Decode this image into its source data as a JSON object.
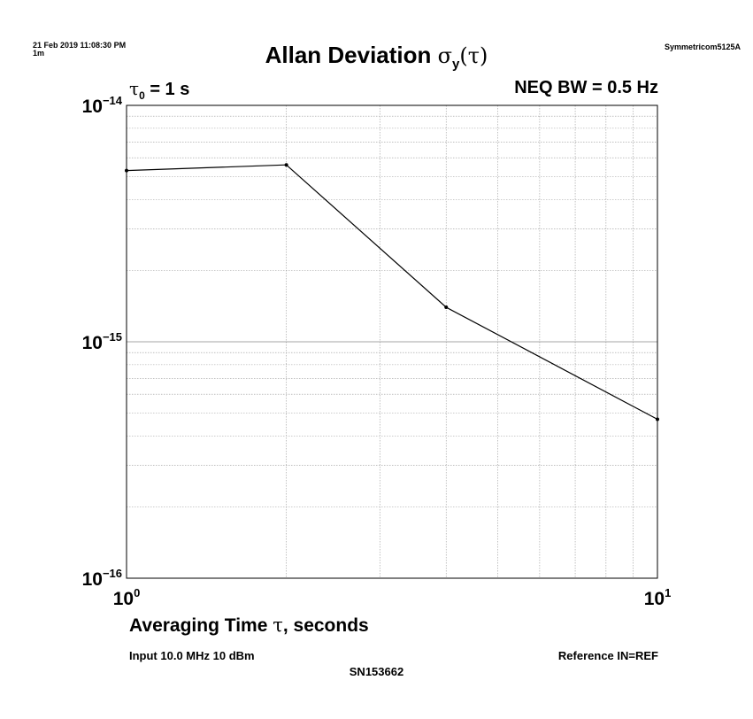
{
  "header": {
    "timestamp": "21 Feb 2019 11:08:30 PM",
    "run_label": "1m",
    "instrument": "Symmetricom5125A",
    "title_text": "Allan Deviation ",
    "title_sigma": "σ",
    "title_sub": "y",
    "title_open": "(",
    "title_tau": "τ",
    "title_close": ")"
  },
  "annotations": {
    "tau0_symbol": "τ",
    "tau0_sub": "0",
    "tau0_value": " = 1 s",
    "neq_bw": "NEQ BW = 0.5 Hz"
  },
  "footer": {
    "xlabel_pre": "Averaging Time ",
    "xlabel_tau": "τ",
    "xlabel_post": ", seconds",
    "input": "Input 10.0 MHz 10 dBm",
    "reference": "Reference IN=REF",
    "serial": "SN153662"
  },
  "chart_data": {
    "type": "line",
    "title": "Allan Deviation σy(τ)",
    "xlabel": "Averaging Time τ, seconds",
    "ylabel": "",
    "x_scale": "log",
    "y_scale": "log",
    "xlim": [
      1,
      10
    ],
    "ylim": [
      1e-16,
      1e-14
    ],
    "grid": true,
    "x_ticks": [
      {
        "value": 1,
        "base": "10",
        "exp": "0"
      },
      {
        "value": 10,
        "base": "10",
        "exp": "1"
      }
    ],
    "y_ticks": [
      {
        "value": 1e-14,
        "base": "10",
        "exp": "−14"
      },
      {
        "value": 1e-15,
        "base": "10",
        "exp": "−15"
      },
      {
        "value": 1e-16,
        "base": "10",
        "exp": "−16"
      }
    ],
    "series": [
      {
        "x": [
          1,
          2,
          4,
          10
        ],
        "y": [
          5.3e-15,
          5.6e-15,
          1.4e-15,
          4.7e-16
        ],
        "color": "#000000"
      }
    ]
  }
}
